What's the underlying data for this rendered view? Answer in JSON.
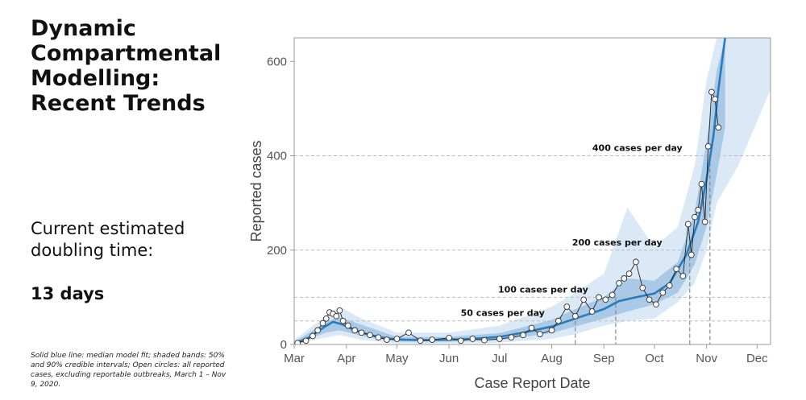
{
  "sidebar": {
    "title": "Dynamic\nCompartmental\nModelling:\nRecent Trends",
    "doubling_label": "Current estimated\ndoubling time:",
    "doubling_value": "13 days",
    "footnote": "Solid blue line: median model fit; shaded bands: 50% and 90% credible intervals; Open circles: all reported cases, excluding reportable outbreaks, March 1 – Nov 9, 2020."
  },
  "colors": {
    "median_line": "#2b7bba",
    "band_50": "#a9c9e6",
    "band_90": "#dbe8f5",
    "gridline": "#bbbbbb",
    "reference_line": "#888888"
  },
  "chart_data": {
    "type": "line",
    "xlabel": "Case Report Date",
    "ylabel": "Reported cases",
    "ylim": [
      0,
      650
    ],
    "xlim": [
      "2020-03-01",
      "2020-12-09"
    ],
    "x_ticks": [
      {
        "label": "Mar",
        "date": "2020-03-01"
      },
      {
        "label": "Apr",
        "date": "2020-04-01"
      },
      {
        "label": "May",
        "date": "2020-05-01"
      },
      {
        "label": "Jun",
        "date": "2020-06-01"
      },
      {
        "label": "Jul",
        "date": "2020-07-01"
      },
      {
        "label": "Aug",
        "date": "2020-08-01"
      },
      {
        "label": "Sep",
        "date": "2020-09-01"
      },
      {
        "label": "Oct",
        "date": "2020-10-01"
      },
      {
        "label": "Nov",
        "date": "2020-11-01"
      },
      {
        "label": "Dec",
        "date": "2020-12-01"
      }
    ],
    "y_ticks": [
      0,
      200,
      400,
      600
    ],
    "reference_levels": [
      {
        "value": 50,
        "label": "50 cases per day",
        "crossed": "2020-08-15"
      },
      {
        "value": 100,
        "label": "100 cases per day",
        "crossed": "2020-09-08"
      },
      {
        "value": 200,
        "label": "200 cases per day",
        "crossed": "2020-10-22"
      },
      {
        "value": 400,
        "label": "400 cases per day",
        "crossed": "2020-11-03"
      }
    ],
    "series": [
      {
        "kind": "median",
        "x": [
          "2020-03-01",
          "2020-03-10",
          "2020-03-18",
          "2020-03-24",
          "2020-03-30",
          "2020-04-06",
          "2020-04-15",
          "2020-04-25",
          "2020-05-05",
          "2020-05-20",
          "2020-06-01",
          "2020-06-15",
          "2020-07-01",
          "2020-07-15",
          "2020-08-01",
          "2020-08-15",
          "2020-09-01",
          "2020-09-10",
          "2020-09-20",
          "2020-10-01",
          "2020-10-10",
          "2020-10-20",
          "2020-10-27",
          "2020-11-01",
          "2020-11-05",
          "2020-11-08",
          "2020-11-12"
        ],
        "y": [
          2,
          15,
          35,
          48,
          42,
          30,
          20,
          13,
          10,
          9,
          10,
          12,
          16,
          25,
          38,
          55,
          75,
          92,
          100,
          108,
          130,
          190,
          260,
          350,
          440,
          540,
          650
        ]
      },
      {
        "kind": "band_50",
        "x": [
          "2020-03-01",
          "2020-03-20",
          "2020-03-28",
          "2020-04-10",
          "2020-05-01",
          "2020-06-01",
          "2020-07-01",
          "2020-08-01",
          "2020-08-15",
          "2020-09-01",
          "2020-09-15",
          "2020-10-01",
          "2020-10-15",
          "2020-10-25",
          "2020-11-01",
          "2020-11-07",
          "2020-11-12"
        ],
        "lower": [
          0,
          25,
          30,
          18,
          6,
          6,
          9,
          24,
          38,
          55,
          70,
          85,
          110,
          170,
          250,
          360,
          460
        ],
        "upper": [
          5,
          48,
          58,
          42,
          16,
          16,
          24,
          52,
          75,
          100,
          140,
          135,
          175,
          280,
          430,
          580,
          650
        ]
      },
      {
        "kind": "band_90",
        "x": [
          "2020-03-01",
          "2020-03-20",
          "2020-03-28",
          "2020-04-10",
          "2020-05-01",
          "2020-06-01",
          "2020-07-01",
          "2020-08-01",
          "2020-08-15",
          "2020-09-01",
          "2020-09-15",
          "2020-10-01",
          "2020-10-15",
          "2020-10-25",
          "2020-11-01",
          "2020-11-07",
          "2020-11-20",
          "2020-12-09"
        ],
        "lower": [
          0,
          15,
          20,
          10,
          2,
          2,
          4,
          12,
          22,
          40,
          50,
          55,
          90,
          130,
          200,
          300,
          380,
          540
        ],
        "upper": [
          10,
          60,
          80,
          55,
          25,
          25,
          40,
          80,
          110,
          150,
          290,
          205,
          250,
          380,
          560,
          650,
          650,
          650
        ]
      },
      {
        "kind": "reported",
        "x": [
          "2020-03-03",
          "2020-03-08",
          "2020-03-12",
          "2020-03-15",
          "2020-03-18",
          "2020-03-20",
          "2020-03-22",
          "2020-03-24",
          "2020-03-26",
          "2020-03-28",
          "2020-03-30",
          "2020-04-02",
          "2020-04-06",
          "2020-04-10",
          "2020-04-15",
          "2020-04-20",
          "2020-04-25",
          "2020-05-01",
          "2020-05-08",
          "2020-05-15",
          "2020-05-22",
          "2020-06-01",
          "2020-06-08",
          "2020-06-15",
          "2020-06-22",
          "2020-07-01",
          "2020-07-08",
          "2020-07-15",
          "2020-07-20",
          "2020-07-25",
          "2020-08-01",
          "2020-08-05",
          "2020-08-10",
          "2020-08-15",
          "2020-08-20",
          "2020-08-25",
          "2020-08-29",
          "2020-09-02",
          "2020-09-06",
          "2020-09-10",
          "2020-09-13",
          "2020-09-16",
          "2020-09-20",
          "2020-09-24",
          "2020-09-28",
          "2020-10-02",
          "2020-10-06",
          "2020-10-10",
          "2020-10-14",
          "2020-10-18",
          "2020-10-21",
          "2020-10-23",
          "2020-10-25",
          "2020-10-27",
          "2020-10-29",
          "2020-10-31",
          "2020-11-02",
          "2020-11-04",
          "2020-11-06",
          "2020-11-08"
        ],
        "y": [
          3,
          8,
          18,
          30,
          45,
          55,
          68,
          65,
          60,
          72,
          50,
          40,
          30,
          25,
          20,
          15,
          10,
          12,
          25,
          8,
          10,
          14,
          8,
          12,
          9,
          12,
          15,
          20,
          35,
          22,
          30,
          50,
          80,
          60,
          95,
          70,
          100,
          95,
          105,
          130,
          140,
          150,
          175,
          120,
          95,
          85,
          110,
          125,
          160,
          145,
          255,
          190,
          270,
          285,
          340,
          260,
          420,
          535,
          520,
          460
        ]
      }
    ]
  }
}
